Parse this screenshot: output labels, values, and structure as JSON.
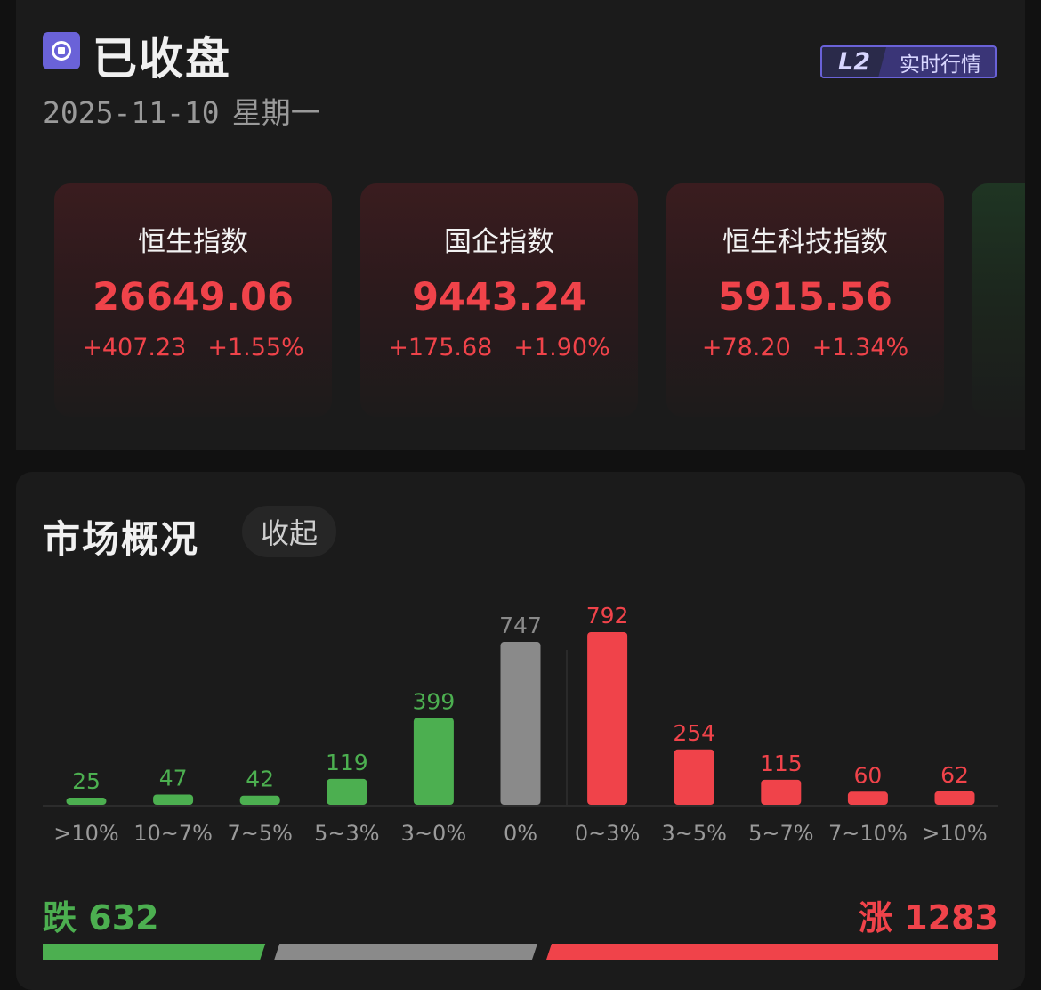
{
  "header": {
    "status_title": "已收盘",
    "date": "2025-11-10",
    "weekday": "星期一",
    "badge_l2": "L2",
    "badge_label": "实时行情"
  },
  "indices": [
    {
      "name": "恒生指数",
      "price": "26649.06",
      "change": "+407.23",
      "change_pct": "+1.55%"
    },
    {
      "name": "国企指数",
      "price": "9443.24",
      "change": "+175.68",
      "change_pct": "+1.90%"
    },
    {
      "name": "恒生科技指数",
      "price": "5915.56",
      "change": "+78.20",
      "change_pct": "+1.34%"
    }
  ],
  "market": {
    "title": "市场概况",
    "collapse_label": "收起",
    "down_label": "跌",
    "down_count": "632",
    "up_label": "涨",
    "up_count": "1283"
  },
  "colors": {
    "up": "#f0434a",
    "down": "#4caf50",
    "flat": "#8a8a8a",
    "accent": "#6a62d8"
  },
  "chart_data": {
    "type": "bar",
    "categories": [
      ">10%",
      "10~7%",
      "7~5%",
      "5~3%",
      "3~0%",
      "0%",
      "0~3%",
      "3~5%",
      "5~7%",
      "7~10%",
      ">10%"
    ],
    "values": [
      25,
      47,
      42,
      119,
      399,
      747,
      792,
      254,
      115,
      60,
      62
    ],
    "groups": [
      "down",
      "down",
      "down",
      "down",
      "down",
      "flat",
      "up",
      "up",
      "up",
      "up",
      "up"
    ],
    "title": "",
    "xlabel": "",
    "ylabel": ""
  },
  "ratio": {
    "down": 632,
    "flat": 747,
    "up": 1283
  }
}
